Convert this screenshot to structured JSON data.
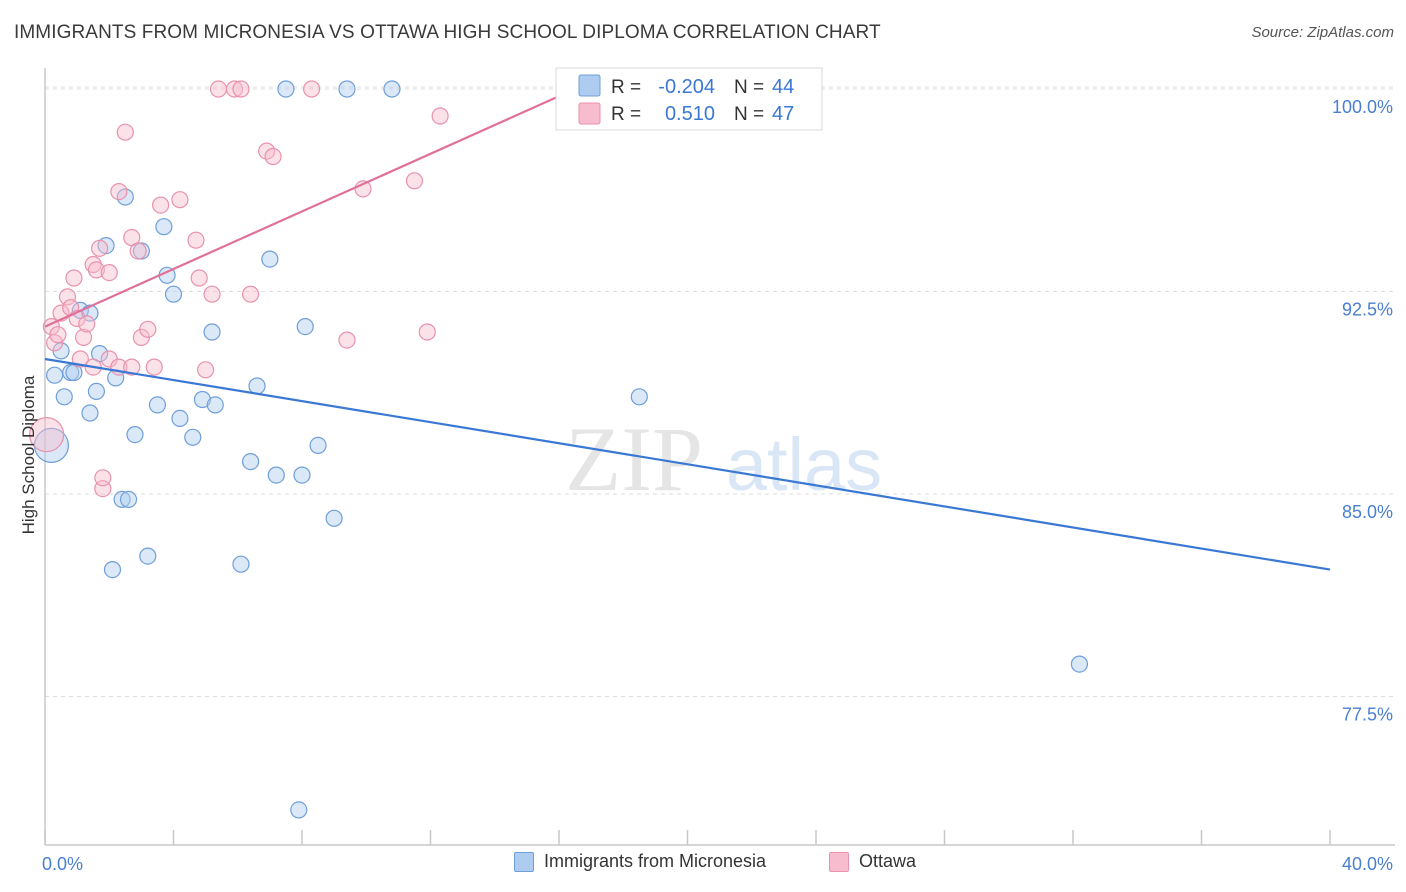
{
  "title": "IMMIGRANTS FROM MICRONESIA VS OTTAWA HIGH SCHOOL DIPLOMA CORRELATION CHART",
  "source": "Source: ZipAtlas.com",
  "watermark": {
    "zip": "ZIP",
    "atlas": "atlas"
  },
  "legend_box": {
    "r_label": "R =",
    "n_label": "N =",
    "series": [
      {
        "r": "-0.204",
        "n": "44"
      },
      {
        "r": "0.510",
        "n": "47"
      }
    ]
  },
  "legend_bottom": [
    "Immigrants from Micronesia",
    "Ottawa"
  ],
  "colors": {
    "blue_fill": "#aecbf0",
    "blue_stroke": "#6f9fd8",
    "blue_line": "#3a78d4",
    "pink_fill": "#f7bccd",
    "pink_stroke": "#e892ad",
    "pink_line": "#e0709a",
    "tick_label": "#4a7fd0",
    "grid": "#dcdcdc",
    "axis": "#c8c8c8"
  },
  "chart_data": {
    "type": "scatter",
    "title": "IMMIGRANTS FROM MICRONESIA VS OTTAWA HIGH SCHOOL DIPLOMA CORRELATION CHART",
    "xlabel": "",
    "ylabel": "High School Diploma",
    "xlim": [
      0,
      40
    ],
    "ylim": [
      72.0,
      101.0
    ],
    "x_tick_labels": [
      {
        "value": 0,
        "label": "0.0%"
      },
      {
        "value": 40,
        "label": "40.0%"
      }
    ],
    "y_ticks": [
      {
        "value": 100.0,
        "label": "100.0%"
      },
      {
        "value": 92.5,
        "label": "92.5%"
      },
      {
        "value": 85.0,
        "label": "85.0%"
      },
      {
        "value": 77.5,
        "label": "77.5%"
      }
    ],
    "grid": true,
    "legend_position": "top-center",
    "series": [
      {
        "name": "Immigrants from Micronesia",
        "color": "blue",
        "r": -0.204,
        "n": 44,
        "trend": {
          "x": [
            0,
            40
          ],
          "y": [
            90.0,
            82.2
          ]
        },
        "points": [
          {
            "x": 0.2,
            "y": 86.8,
            "big": true
          },
          {
            "x": 0.3,
            "y": 89.4
          },
          {
            "x": 0.5,
            "y": 90.3
          },
          {
            "x": 0.6,
            "y": 88.6
          },
          {
            "x": 0.8,
            "y": 89.5
          },
          {
            "x": 0.9,
            "y": 89.5
          },
          {
            "x": 1.1,
            "y": 91.8
          },
          {
            "x": 1.4,
            "y": 91.7
          },
          {
            "x": 1.4,
            "y": 88.0
          },
          {
            "x": 1.6,
            "y": 88.8
          },
          {
            "x": 1.7,
            "y": 90.2
          },
          {
            "x": 1.9,
            "y": 94.2
          },
          {
            "x": 2.2,
            "y": 89.3
          },
          {
            "x": 2.4,
            "y": 84.8
          },
          {
            "x": 2.6,
            "y": 84.8
          },
          {
            "x": 2.5,
            "y": 96.0
          },
          {
            "x": 2.1,
            "y": 82.2
          },
          {
            "x": 2.8,
            "y": 87.2
          },
          {
            "x": 3.0,
            "y": 94.0
          },
          {
            "x": 3.2,
            "y": 82.7
          },
          {
            "x": 3.5,
            "y": 88.3
          },
          {
            "x": 3.7,
            "y": 94.9
          },
          {
            "x": 3.8,
            "y": 93.1
          },
          {
            "x": 4.0,
            "y": 92.4
          },
          {
            "x": 4.2,
            "y": 87.8
          },
          {
            "x": 4.6,
            "y": 87.1
          },
          {
            "x": 4.9,
            "y": 88.5
          },
          {
            "x": 5.2,
            "y": 91.0
          },
          {
            "x": 5.3,
            "y": 88.3
          },
          {
            "x": 6.1,
            "y": 82.4
          },
          {
            "x": 6.4,
            "y": 86.2
          },
          {
            "x": 6.6,
            "y": 89.0
          },
          {
            "x": 7.0,
            "y": 93.7
          },
          {
            "x": 7.2,
            "y": 85.7
          },
          {
            "x": 7.5,
            "y": 100.0
          },
          {
            "x": 8.0,
            "y": 85.7
          },
          {
            "x": 8.1,
            "y": 91.2
          },
          {
            "x": 8.5,
            "y": 86.8
          },
          {
            "x": 9.0,
            "y": 84.1
          },
          {
            "x": 9.4,
            "y": 100.0
          },
          {
            "x": 10.8,
            "y": 100.0
          },
          {
            "x": 18.5,
            "y": 88.6
          },
          {
            "x": 32.2,
            "y": 78.7
          },
          {
            "x": 7.9,
            "y": 73.3
          }
        ]
      },
      {
        "name": "Ottawa",
        "color": "pink",
        "r": 0.51,
        "n": 47,
        "trend": {
          "x": [
            0,
            16.5
          ],
          "y": [
            91.2,
            100.0
          ]
        },
        "points": [
          {
            "x": 0.05,
            "y": 87.2,
            "big": true
          },
          {
            "x": 0.2,
            "y": 91.2
          },
          {
            "x": 0.3,
            "y": 90.6
          },
          {
            "x": 0.4,
            "y": 90.9
          },
          {
            "x": 0.5,
            "y": 91.7
          },
          {
            "x": 0.7,
            "y": 92.3
          },
          {
            "x": 0.8,
            "y": 91.9
          },
          {
            "x": 0.9,
            "y": 93.0
          },
          {
            "x": 1.0,
            "y": 91.5
          },
          {
            "x": 1.1,
            "y": 90.0
          },
          {
            "x": 1.2,
            "y": 90.8
          },
          {
            "x": 1.3,
            "y": 91.3
          },
          {
            "x": 1.5,
            "y": 89.7
          },
          {
            "x": 1.5,
            "y": 93.5
          },
          {
            "x": 1.6,
            "y": 93.3
          },
          {
            "x": 1.7,
            "y": 94.1
          },
          {
            "x": 1.8,
            "y": 85.2
          },
          {
            "x": 1.8,
            "y": 85.6
          },
          {
            "x": 2.0,
            "y": 93.2
          },
          {
            "x": 2.0,
            "y": 90.0
          },
          {
            "x": 2.3,
            "y": 89.7
          },
          {
            "x": 2.3,
            "y": 96.2
          },
          {
            "x": 2.5,
            "y": 98.4
          },
          {
            "x": 2.7,
            "y": 89.7
          },
          {
            "x": 2.7,
            "y": 94.5
          },
          {
            "x": 2.9,
            "y": 94.0
          },
          {
            "x": 3.0,
            "y": 90.8
          },
          {
            "x": 3.2,
            "y": 91.1
          },
          {
            "x": 3.4,
            "y": 89.7
          },
          {
            "x": 3.6,
            "y": 95.7
          },
          {
            "x": 4.2,
            "y": 95.9
          },
          {
            "x": 4.7,
            "y": 94.4
          },
          {
            "x": 4.8,
            "y": 93.0
          },
          {
            "x": 5.0,
            "y": 89.6
          },
          {
            "x": 5.2,
            "y": 92.4
          },
          {
            "x": 5.4,
            "y": 100.0
          },
          {
            "x": 5.9,
            "y": 100.0
          },
          {
            "x": 6.1,
            "y": 100.0
          },
          {
            "x": 6.4,
            "y": 92.4
          },
          {
            "x": 6.9,
            "y": 97.7
          },
          {
            "x": 7.1,
            "y": 97.5
          },
          {
            "x": 8.3,
            "y": 100.0
          },
          {
            "x": 9.4,
            "y": 90.7
          },
          {
            "x": 9.9,
            "y": 96.3
          },
          {
            "x": 11.5,
            "y": 96.6
          },
          {
            "x": 11.9,
            "y": 91.0
          },
          {
            "x": 12.3,
            "y": 99.0
          }
        ]
      }
    ]
  }
}
